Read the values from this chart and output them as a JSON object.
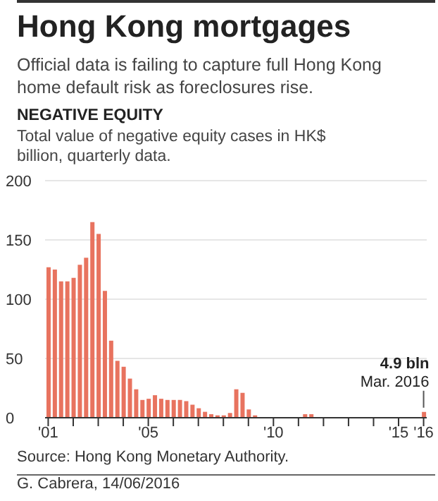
{
  "chart_data": {
    "type": "bar",
    "title": "Hong Kong mortgages",
    "subtitle": "Official data is failing to capture full Hong Kong home default risk as foreclosures rise.",
    "ylabel": "NEGATIVE EQUITY",
    "categories": [
      "'01",
      null,
      null,
      null,
      null,
      null,
      null,
      null,
      null,
      null,
      null,
      null,
      null,
      null,
      null,
      null,
      "'05",
      null,
      null,
      null,
      null,
      null,
      null,
      null,
      null,
      null,
      null,
      null,
      null,
      null,
      null,
      null,
      null,
      null,
      null,
      null,
      "'10",
      null,
      null,
      null,
      null,
      null,
      null,
      null,
      null,
      null,
      null,
      null,
      null,
      null,
      null,
      null,
      null,
      null,
      null,
      null,
      "'15",
      null,
      null,
      null,
      "'16"
    ],
    "values": [
      127,
      125,
      115,
      115,
      118,
      129,
      135,
      165,
      155,
      107,
      65,
      48,
      43,
      33,
      24,
      15,
      16,
      19,
      16,
      15,
      15,
      15,
      14,
      11,
      8,
      5,
      3,
      2,
      2,
      4,
      24,
      21,
      7,
      2,
      0,
      0,
      0,
      0,
      0,
      0,
      0,
      3,
      3,
      0,
      0,
      0,
      0,
      0,
      0,
      0,
      0,
      0,
      0,
      0,
      0,
      0,
      0,
      0,
      0,
      0,
      4.9
    ],
    "color": "#e8735f",
    "ylim": [
      0,
      200
    ],
    "yticks": [
      0,
      50,
      100,
      150,
      200
    ],
    "grid": "y",
    "annotations": [
      "Total value of negative equity cases in HK$ billion, quarterly data.",
      {
        "text": "4.9 bln",
        "x": "'16",
        "y": 4.9
      },
      {
        "text": "Mar. 2016",
        "x": "'16",
        "y": 4.9
      },
      "Source: Hong Kong Monetary Authority.",
      "G. Cabrera, 14/06/2016"
    ]
  }
}
